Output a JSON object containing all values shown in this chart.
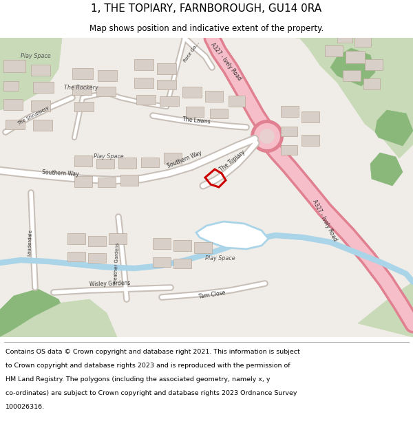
{
  "title_line1": "1, THE TOPIARY, FARNBOROUGH, GU14 0RA",
  "title_line2": "Map shows position and indicative extent of the property.",
  "copyright_text": "Contains OS data © Crown copyright and database right 2021. This information is subject to Crown copyright and database rights 2023 and is reproduced with the permission of HM Land Registry. The polygons (including the associated geometry, namely x, y co-ordinates) are subject to Crown copyright and database rights 2023 Ordnance Survey 100026316.",
  "bg_color": "#f2efe9",
  "map_bg": "#f0ede8",
  "green_light": "#c8dab8",
  "green_dark": "#8ab87a",
  "water_color": "#aad4e8",
  "road_main_fill": "#f5bec8",
  "road_main_edge": "#e08090",
  "road_minor_fill": "#ffffff",
  "road_minor_edge": "#c8c0b8",
  "building_fill": "#d8cfc8",
  "building_edge": "#b8a898",
  "highlight_color": "#cc0000",
  "text_color": "#333333",
  "title_fontsize": 11,
  "subtitle_fontsize": 8.5,
  "copyright_fontsize": 6.8
}
